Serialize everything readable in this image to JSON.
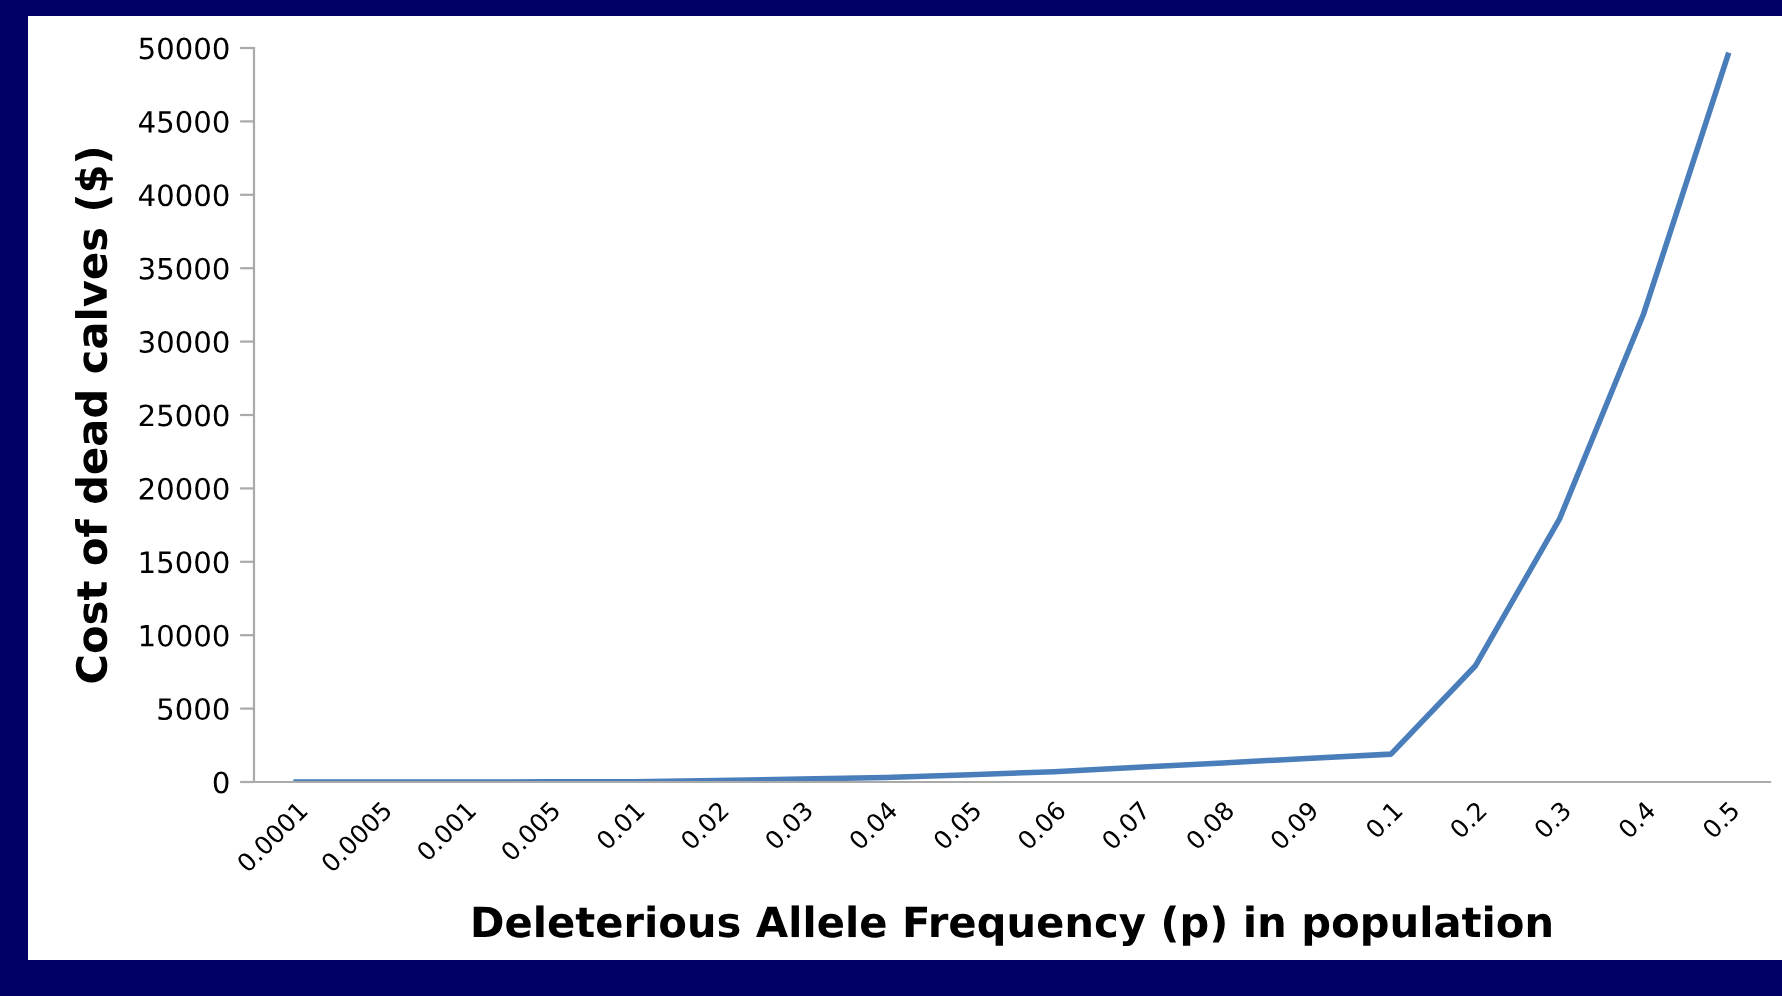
{
  "chart_data": {
    "type": "line",
    "xlabel": "Deleterious Allele Frequency (p) in population",
    "ylabel": "Cost of dead calves ($)",
    "categories": [
      "0.0001",
      "0.0005",
      "0.001",
      "0.005",
      "0.01",
      "0.02",
      "0.03",
      "0.04",
      "0.05",
      "0.06",
      "0.07",
      "0.08",
      "0.09",
      "0.1",
      "0.2",
      "0.3",
      "0.4",
      "0.5"
    ],
    "series": [
      {
        "color": "#4a7ebb",
        "values": [
          0,
          0,
          0,
          10,
          20,
          100,
          200,
          300,
          500,
          700,
          1000,
          1300,
          1600,
          1900,
          7900,
          17900,
          31900,
          49500
        ]
      }
    ],
    "ylim": [
      0,
      50000
    ],
    "yticks": [
      0,
      5000,
      10000,
      15000,
      20000,
      25000,
      30000,
      35000,
      40000,
      45000,
      50000
    ],
    "grid": false,
    "legend": false,
    "marker": "none",
    "line_style": "solid"
  }
}
